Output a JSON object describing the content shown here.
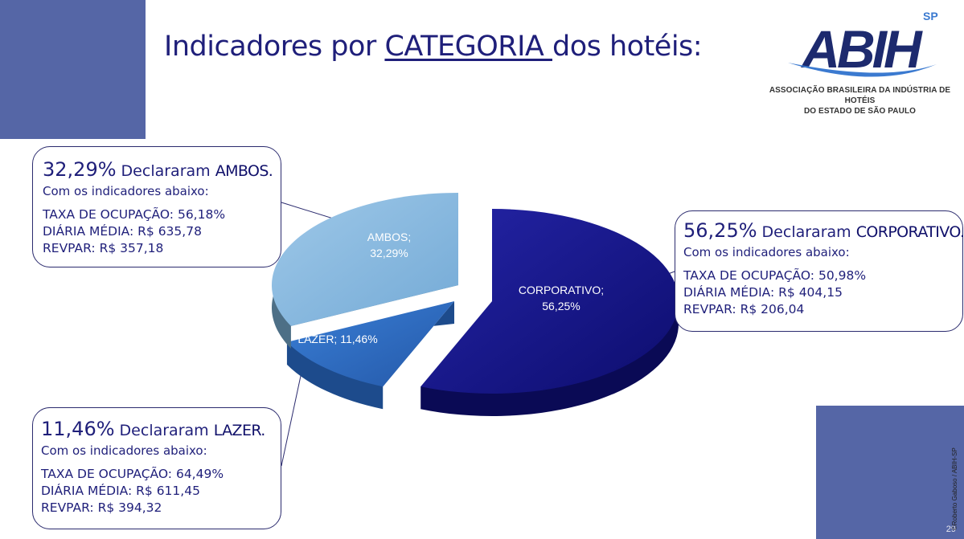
{
  "slide": {
    "title_before": "Indicadores por ",
    "title_highlight": "CATEGORIA ",
    "title_after": "dos hotéis:",
    "page_number": "29",
    "credit": "©Roberto Gaboso / ABIH-SP"
  },
  "logo": {
    "wordmark": "ABIH",
    "region": "SP",
    "caption_line1": "ASSOCIAÇÃO BRASILEIRA DA INDÚSTRIA DE HOTÉIS",
    "caption_line2": "DO ESTADO DE SÃO PAULO"
  },
  "callouts": {
    "ambos": {
      "pct": "32,29%",
      "decl": " Declararam ",
      "cat": "AMBOS.",
      "sub": "Com os indicadores abaixo:",
      "ocupacao": "TAXA DE OCUPAÇÃO: 56,18%",
      "diaria": "DIÁRIA MÉDIA: R$ 635,78",
      "revpar": "REVPAR: R$ 357,18"
    },
    "corporativo": {
      "pct": "56,25%",
      "decl": " Declararam ",
      "cat": "CORPORATIVO.",
      "sub": "Com os indicadores abaixo:",
      "ocupacao": "TAXA DE OCUPAÇÃO: 50,98%",
      "diaria": "DIÁRIA MÉDIA: R$ 404,15",
      "revpar": "REVPAR: R$ 206,04"
    },
    "lazer": {
      "pct": "11,46%",
      "decl": " Declararam ",
      "cat": "LAZER.",
      "sub": "Com os indicadores abaixo:",
      "ocupacao": "TAXA DE OCUPAÇÃO: 64,49%",
      "diaria": "DIÁRIA MÉDIA: R$ 611,45",
      "revpar": "REVPAR: R$ 394,32"
    }
  },
  "chart_data": {
    "type": "pie",
    "title": "",
    "categories": [
      "CORPORATIVO",
      "LAZER",
      "AMBOS"
    ],
    "values": [
      56.25,
      11.46,
      32.29
    ],
    "labels": [
      "CORPORATIVO;\n56,25%",
      "LAZER; 11,46%",
      "AMBOS;\n32,29%"
    ],
    "colors": [
      "#1a1a8c",
      "#2f6fc4",
      "#7eb4dc"
    ],
    "style": "3d-exploded",
    "legend": "none"
  }
}
